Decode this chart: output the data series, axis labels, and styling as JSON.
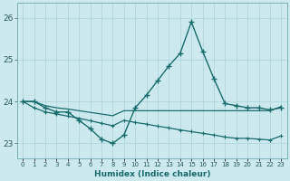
{
  "xlabel": "Humidex (Indice chaleur)",
  "background_color": "#cce9ee",
  "line_color": "#1a6b6b",
  "grid_color": "#b0d8de",
  "x_ticks": [
    0,
    1,
    2,
    3,
    4,
    5,
    6,
    7,
    8,
    9,
    10,
    11,
    12,
    13,
    14,
    15,
    16,
    17,
    18,
    19,
    20,
    21,
    22,
    23
  ],
  "ylim": [
    22.65,
    26.35
  ],
  "yticks": [
    23,
    24,
    25,
    26
  ],
  "main_line_y": [
    24.0,
    24.0,
    23.85,
    23.75,
    23.75,
    23.55,
    23.35,
    23.1,
    23.0,
    23.2,
    23.85,
    24.15,
    24.5,
    24.85,
    25.15,
    25.9,
    25.2,
    24.55,
    23.95,
    23.9,
    23.85,
    23.85,
    23.8,
    23.85
  ],
  "flat_line_y": [
    24.0,
    24.0,
    23.9,
    23.85,
    23.82,
    23.78,
    23.74,
    23.7,
    23.66,
    23.78,
    23.78,
    23.78,
    23.78,
    23.78,
    23.78,
    23.78,
    23.78,
    23.78,
    23.78,
    23.78,
    23.78,
    23.78,
    23.78,
    23.88
  ],
  "desc_line_y": [
    24.0,
    23.85,
    23.75,
    23.7,
    23.65,
    23.6,
    23.54,
    23.48,
    23.42,
    23.55,
    23.5,
    23.46,
    23.41,
    23.37,
    23.32,
    23.28,
    23.24,
    23.2,
    23.15,
    23.12,
    23.12,
    23.1,
    23.08,
    23.18
  ]
}
